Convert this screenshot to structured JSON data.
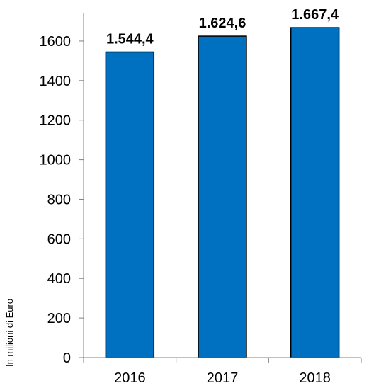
{
  "chart_data": {
    "type": "bar",
    "categories": [
      "2016",
      "2017",
      "2018"
    ],
    "values": [
      1544.4,
      1624.6,
      1667.4
    ],
    "data_labels": [
      "1.544,4",
      "1.624,6",
      "1.667,4"
    ],
    "ylabel": "In milioni di Euro",
    "xlabel": "",
    "ylim": [
      0,
      1700
    ],
    "yticks": [
      0,
      200,
      400,
      600,
      800,
      1000,
      1200,
      1400,
      1600
    ],
    "grid": false,
    "legend": "none",
    "colors": {
      "bar_fill": "#0070C0",
      "bar_stroke": "#000000",
      "axis": "#808080"
    }
  }
}
